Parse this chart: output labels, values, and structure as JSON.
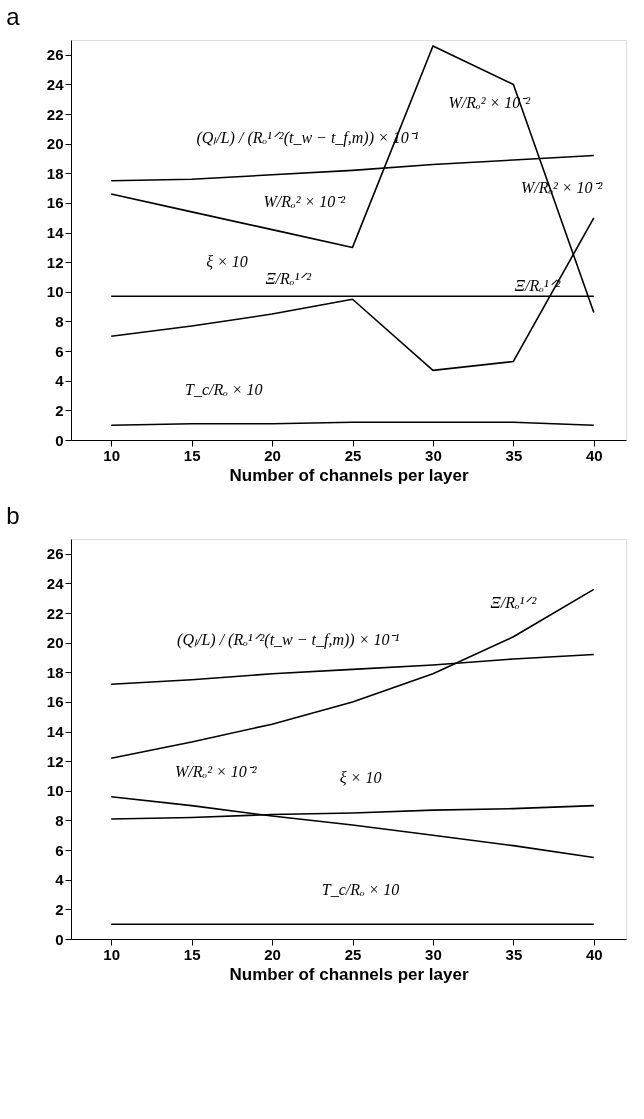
{
  "chart_data": [
    {
      "type": "line",
      "title": "a",
      "xlabel": "Number of channels per layer",
      "x": [
        10,
        15,
        20,
        25,
        30,
        35,
        40
      ],
      "xlim": [
        7.5,
        42
      ],
      "xticks": [
        10,
        15,
        20,
        25,
        30,
        35,
        40
      ],
      "ylim": [
        0,
        27
      ],
      "yticks": [
        0,
        2,
        4,
        6,
        8,
        10,
        12,
        14,
        16,
        18,
        20,
        22,
        24,
        26
      ],
      "series": [
        {
          "color": "#000000",
          "values": [
            17.5,
            17.6,
            17.9,
            18.2,
            18.6,
            18.9,
            19.2
          ]
        },
        {
          "color": "#000000",
          "values": [
            16.6,
            15.4,
            14.2,
            13.0,
            26.6,
            24.0,
            8.6
          ]
        },
        {
          "color": "#000000",
          "values": [
            9.7,
            9.7,
            9.7,
            9.7,
            9.7,
            9.7,
            9.7
          ]
        },
        {
          "color": "#000000",
          "values": [
            7.0,
            7.7,
            8.5,
            9.5,
            4.7,
            5.3,
            15.0
          ]
        },
        {
          "color": "#000000",
          "values": [
            1.0,
            1.1,
            1.1,
            1.2,
            1.2,
            1.2,
            1.0
          ]
        }
      ],
      "annotations": [
        {
          "text": "(Qₗ/L) / (Rₒ¹ᐟ²(t_w − t_f,m)) × 10⁻¹",
          "x": 22.2,
          "y": 18.1
        },
        {
          "text": "W/Rₒ² × 10⁻²",
          "x": 22,
          "y": 13.8
        },
        {
          "text": "W/Rₒ² × 10⁻²",
          "x": 33.5,
          "y": 24.8
        },
        {
          "text": "W/Rₒ² × 10⁻²",
          "x": 38,
          "y": 14.7
        },
        {
          "text": "ξ × 10",
          "x": 17.2,
          "y": 9.7
        },
        {
          "text": "Ξ/Rₒ¹ᐟ²",
          "x": 21,
          "y": 8.6
        },
        {
          "text": "Ξ/Rₒ¹ᐟ²",
          "x": 36.5,
          "y": 8.1
        },
        {
          "text": "T_c/Rₒ × 10",
          "x": 17,
          "y": 1.1
        }
      ]
    },
    {
      "type": "line",
      "title": "b",
      "xlabel": "Number of channels per layer",
      "x": [
        10,
        15,
        20,
        25,
        30,
        35,
        40
      ],
      "xlim": [
        7.5,
        42
      ],
      "xticks": [
        10,
        15,
        20,
        25,
        30,
        35,
        40
      ],
      "ylim": [
        0,
        27
      ],
      "yticks": [
        0,
        2,
        4,
        6,
        8,
        10,
        12,
        14,
        16,
        18,
        20,
        22,
        24,
        26
      ],
      "series": [
        {
          "color": "#000000",
          "values": [
            17.2,
            17.5,
            17.9,
            18.2,
            18.5,
            18.9,
            19.2
          ]
        },
        {
          "color": "#000000",
          "values": [
            12.2,
            13.3,
            14.5,
            16.0,
            17.9,
            20.4,
            23.6
          ]
        },
        {
          "color": "#000000",
          "values": [
            9.6,
            9.0,
            8.3,
            7.7,
            7.0,
            6.3,
            5.5
          ]
        },
        {
          "color": "#000000",
          "values": [
            8.1,
            8.2,
            8.4,
            8.5,
            8.7,
            8.8,
            9.0
          ]
        },
        {
          "color": "#000000",
          "values": [
            1.0,
            1.0,
            1.0,
            1.0,
            1.0,
            1.0,
            1.0
          ]
        }
      ],
      "annotations": [
        {
          "text": "(Qₗ/L) / (Rₒ¹ᐟ²(t_w − t_f,m)) × 10⁻¹",
          "x": 21,
          "y": 17.9
        },
        {
          "text": "Ξ/Rₒ¹ᐟ²",
          "x": 35,
          "y": 20.4
        },
        {
          "text": "W/Rₒ² × 10⁻²",
          "x": 16.5,
          "y": 9.0
        },
        {
          "text": "ξ × 10",
          "x": 25.5,
          "y": 8.6
        },
        {
          "text": "T_c/Rₒ × 10",
          "x": 25.5,
          "y": 1.0
        }
      ]
    }
  ]
}
